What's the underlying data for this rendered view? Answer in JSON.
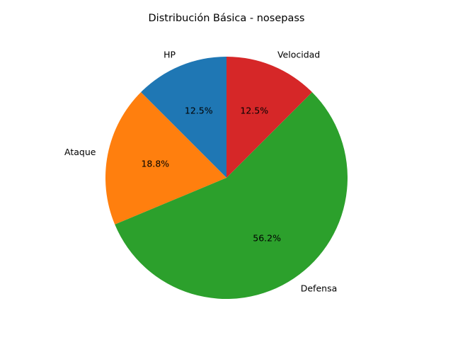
{
  "chart_data": {
    "type": "pie",
    "title": "Distribución Básica - nosepass",
    "start_angle_deg": 90,
    "direction": "counterclockwise",
    "slices": [
      {
        "label": "HP",
        "value": 12.5,
        "pct_label": "12.5%",
        "color": "#1f77b4"
      },
      {
        "label": "Ataque",
        "value": 18.8,
        "pct_label": "18.8%",
        "color": "#ff7f0e"
      },
      {
        "label": "Defensa",
        "value": 56.2,
        "pct_label": "56.2%",
        "color": "#2ca02c"
      },
      {
        "label": "Velocidad",
        "value": 12.5,
        "pct_label": "12.5%",
        "color": "#d62728"
      }
    ]
  }
}
